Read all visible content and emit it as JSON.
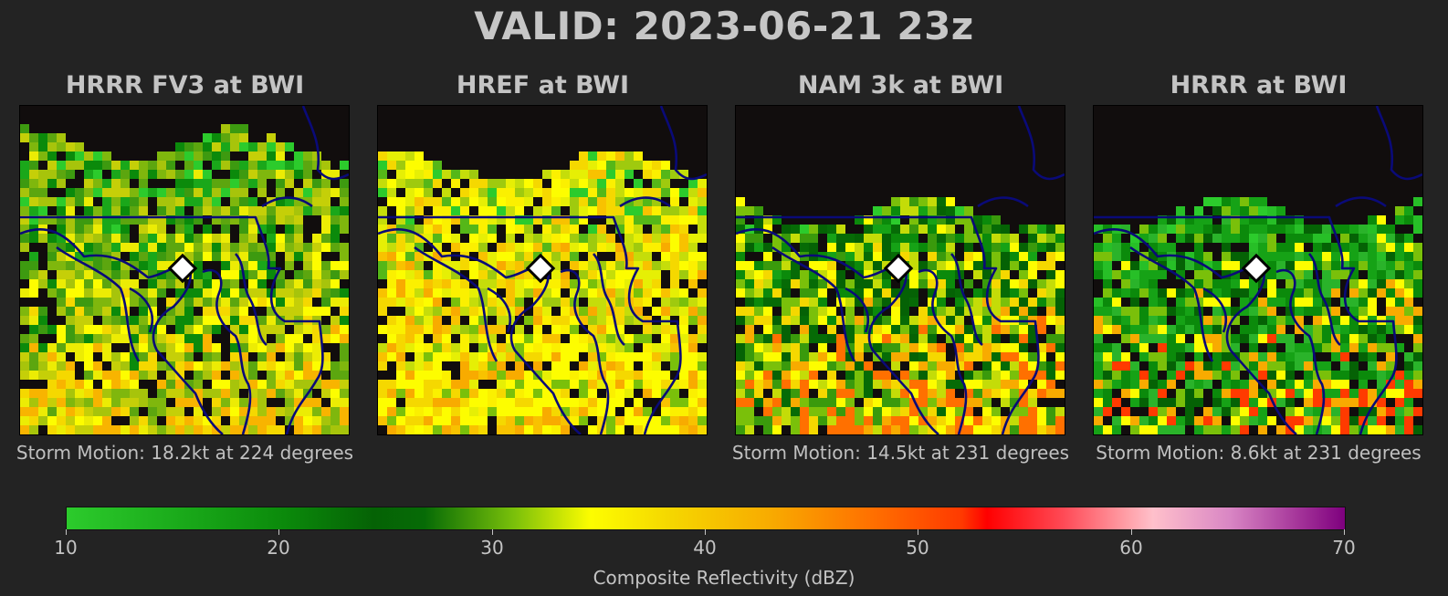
{
  "header": {
    "title": "VALID: 2023-06-21 23z"
  },
  "panels": [
    {
      "title": "HRRR FV3 at BWI",
      "storm_motion": "Storm Motion: 18.2kt at 224 degrees",
      "seed": 11,
      "palette": [
        "#2ccb2c",
        "#1aa71a",
        "#3d9a10",
        "#0b8a0b",
        "#5ca60f",
        "#7fb70d",
        "#a7c40b",
        "#c5cf08",
        "#ecec04",
        "#fdfd00",
        "#f5d800",
        "#f8b400"
      ]
    },
    {
      "title": "HREF at BWI",
      "storm_motion": "",
      "seed": 23,
      "palette": [
        "#2ccb2c",
        "#55b718",
        "#9fca0e",
        "#c5dd0a",
        "#e6ef05",
        "#fdfd00",
        "#fbf000",
        "#f5d800",
        "#f8c200",
        "#f8ab00",
        "#7ac00a",
        "#fdfd00"
      ]
    },
    {
      "title": "NAM 3k at BWI",
      "storm_motion": "Storm Motion: 14.5kt at 231 degrees",
      "seed": 37,
      "palette": [
        "#2ccb2c",
        "#16a216",
        "#0b8a0b",
        "#056205",
        "#066b06",
        "#3a9a0c",
        "#7ac00a",
        "#c4dc08",
        "#fdfd00",
        "#f5d800",
        "#f8ab00",
        "#ff7000"
      ]
    },
    {
      "title": "HRRR at BWI",
      "storm_motion": "Storm Motion: 8.6kt at 231 degrees",
      "seed": 51,
      "palette": [
        "#2ccb2c",
        "#27bf27",
        "#16a216",
        "#0b8a0b",
        "#0b8a0b",
        "#056205",
        "#2ab32a",
        "#16a216",
        "#7ac00a",
        "#fdfd00",
        "#f8ab00",
        "#ff3a00"
      ]
    }
  ],
  "colorbar": {
    "label": "Composite Reflectivity (dBZ)",
    "min": 10,
    "max": 70,
    "ticks": [
      "10",
      "20",
      "30",
      "40",
      "50",
      "60",
      "70"
    ]
  },
  "colors": {
    "background": "#232323",
    "no_echo": "#110d0d",
    "borders": "#0a0a78",
    "marker_fill": "#ffffff"
  },
  "marker": {
    "icon": "station-diamond-icon",
    "name": "BWI"
  }
}
